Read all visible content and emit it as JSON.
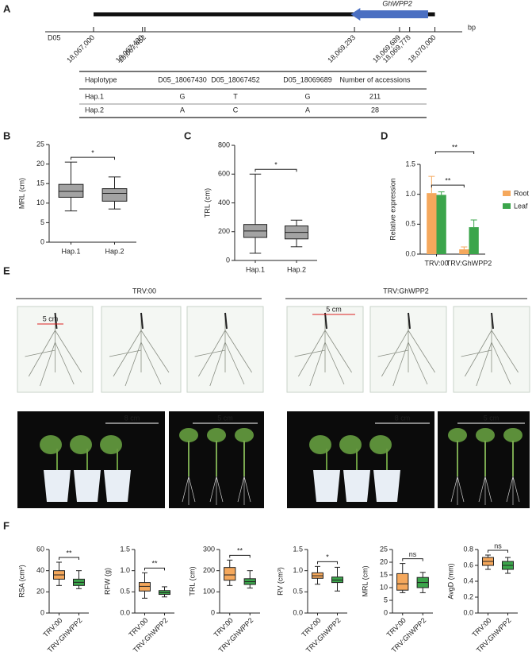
{
  "panel_labels": [
    "A",
    "B",
    "C",
    "D",
    "E",
    "F"
  ],
  "gene_map": {
    "chromosome": "D05",
    "unit": "bp",
    "gene": "GhWPP2",
    "xlim": [
      18066575,
      18070240
    ],
    "region": [
      18067000,
      18070000
    ],
    "gene_span": [
      18069260,
      18069940
    ],
    "ticks": [
      {
        "value": 18067000,
        "label": "18,067,000"
      },
      {
        "value": 18067430,
        "label": "18,067,430"
      },
      {
        "value": 18067452,
        "label": "18,067,452"
      },
      {
        "value": 18069293,
        "label": "18,069,293"
      },
      {
        "value": 18069689,
        "label": "18,069,689"
      },
      {
        "value": 18069778,
        "label": "18,069,778"
      },
      {
        "value": 18070000,
        "label": "18,070,000"
      }
    ]
  },
  "haplotype_table": {
    "header": [
      "Haplotype",
      "D05_18067430",
      "D05_18067452",
      "D05_18069689",
      "Number of accessions"
    ],
    "rows": [
      [
        "Hap.1",
        "G",
        "T",
        "G",
        211
      ],
      [
        "Hap.2",
        "A",
        "C",
        "A",
        28
      ]
    ]
  },
  "chart_data": [
    {
      "type": "box",
      "y_label": "MRL (cm)",
      "categories": [
        "Hap.1",
        "Hap.2"
      ],
      "colors": [
        "#a3a3a3",
        "#a3a3a3"
      ],
      "ylim": [
        0,
        25
      ],
      "yticks": [
        0,
        5,
        10,
        15,
        20,
        25
      ],
      "significance": "*",
      "boxes": [
        {
          "min": 8,
          "q1": 11.5,
          "median": 13,
          "q3": 14.8,
          "max": 20.5
        },
        {
          "min": 8.5,
          "q1": 10.5,
          "median": 12.5,
          "q3": 13.7,
          "max": 16.7
        }
      ]
    },
    {
      "type": "box",
      "y_label": "TRL (cm)",
      "categories": [
        "Hap.1",
        "Hap.2"
      ],
      "colors": [
        "#a3a3a3",
        "#a3a3a3"
      ],
      "ylim": [
        0,
        800
      ],
      "yticks": [
        0,
        200,
        400,
        600,
        800
      ],
      "significance": "*",
      "boxes": [
        {
          "min": 50,
          "q1": 160,
          "median": 205,
          "q3": 250,
          "max": 600
        },
        {
          "min": 95,
          "q1": 150,
          "median": 195,
          "q3": 240,
          "max": 280
        }
      ]
    },
    {
      "type": "bar",
      "y_label": "Relative expression",
      "categories": [
        "TRV:00",
        "TRV:GhWPP2"
      ],
      "ylim": [
        0,
        1.5
      ],
      "yticks": [
        {
          "value": 0,
          "label": "0.0"
        },
        0.5,
        {
          "value": 1,
          "label": "1.0"
        },
        1.5
      ],
      "significance": [
        "**",
        "**"
      ],
      "series": [
        {
          "name": "Root",
          "color": "#f5a85c",
          "values": [
            1.02,
            0.08
          ],
          "errors": [
            0.28,
            0.04
          ]
        },
        {
          "name": "Leaf",
          "color": "#3ba54b",
          "values": [
            0.99,
            0.45
          ],
          "errors": [
            0.05,
            0.12
          ]
        }
      ]
    },
    {
      "type": "box",
      "y_label": "RSA (cm²)",
      "categories": [
        "TRV:00",
        "TRV:GhWPP2"
      ],
      "colors": [
        "#f5a85c",
        "#3ba54b"
      ],
      "ylim": [
        0,
        60
      ],
      "yticks": [
        0,
        20,
        40,
        60
      ],
      "significance": "**",
      "boxes": [
        {
          "min": 26,
          "q1": 32,
          "median": 36,
          "q3": 40,
          "max": 48
        },
        {
          "min": 23,
          "q1": 26,
          "median": 29,
          "q3": 32,
          "max": 40
        }
      ]
    },
    {
      "type": "box",
      "y_label": "RFW (g)",
      "categories": [
        "TRV:00",
        "TRV:GhWPP2"
      ],
      "colors": [
        "#f5a85c",
        "#3ba54b"
      ],
      "ylim": [
        0,
        1.5
      ],
      "yticks": [
        {
          "value": 0,
          "label": "0.0"
        },
        0.5,
        {
          "value": 1,
          "label": "1.0"
        },
        1.5
      ],
      "significance": "**",
      "boxes": [
        {
          "min": 0.35,
          "q1": 0.52,
          "median": 0.63,
          "q3": 0.72,
          "max": 0.95
        },
        {
          "min": 0.38,
          "q1": 0.44,
          "median": 0.48,
          "q3": 0.53,
          "max": 0.62
        }
      ]
    },
    {
      "type": "box",
      "y_label": "TRL (cm)",
      "categories": [
        "TRV:00",
        "TRV:GhWPP2"
      ],
      "colors": [
        "#f5a85c",
        "#3ba54b"
      ],
      "ylim": [
        0,
        300
      ],
      "yticks": [
        0,
        100,
        200,
        300
      ],
      "significance": "**",
      "boxes": [
        {
          "min": 130,
          "q1": 155,
          "median": 180,
          "q3": 215,
          "max": 250
        },
        {
          "min": 118,
          "q1": 135,
          "median": 148,
          "q3": 162,
          "max": 200
        }
      ]
    },
    {
      "type": "box",
      "y_label": "RV (cm³)",
      "categories": [
        "TRV:00",
        "TRV:GhWPP2"
      ],
      "colors": [
        "#f5a85c",
        "#3ba54b"
      ],
      "ylim": [
        0,
        1.5
      ],
      "yticks": [
        {
          "value": 0,
          "label": "0.0"
        },
        0.5,
        {
          "value": 1,
          "label": "1.0"
        },
        1.5
      ],
      "significance": "*",
      "boxes": [
        {
          "min": 0.68,
          "q1": 0.82,
          "median": 0.88,
          "q3": 0.95,
          "max": 1.1
        },
        {
          "min": 0.52,
          "q1": 0.72,
          "median": 0.78,
          "q3": 0.85,
          "max": 1.08
        }
      ]
    },
    {
      "type": "box",
      "y_label": "MRL (cm)",
      "categories": [
        "TRV:00",
        "TRV:GhWPP2"
      ],
      "colors": [
        "#f5a85c",
        "#3ba54b"
      ],
      "ylim": [
        0,
        25
      ],
      "yticks": [
        0,
        5,
        10,
        15,
        20,
        25
      ],
      "significance": "ns",
      "boxes": [
        {
          "min": 8,
          "q1": 9,
          "median": 11.5,
          "q3": 15.5,
          "max": 19.5
        },
        {
          "min": 8,
          "q1": 10,
          "median": 12,
          "q3": 14,
          "max": 16
        }
      ]
    },
    {
      "type": "box",
      "y_label": "AvgD (mm)",
      "categories": [
        "TRV:00",
        "TRV:GhWPP2"
      ],
      "colors": [
        "#f5a85c",
        "#3ba54b"
      ],
      "ylim": [
        0,
        0.8
      ],
      "yticks": [
        {
          "value": 0,
          "label": "0.0"
        },
        0.2,
        0.4,
        0.6,
        0.8
      ],
      "significance": "ns",
      "boxes": [
        {
          "min": 0.55,
          "q1": 0.6,
          "median": 0.65,
          "q3": 0.7,
          "max": 0.73
        },
        {
          "min": 0.5,
          "q1": 0.55,
          "median": 0.6,
          "q3": 0.65,
          "max": 0.7
        }
      ]
    }
  ],
  "photos": {
    "groups": [
      "TRV:00",
      "TRV:GhWPP2"
    ],
    "scale_bars": [
      "5 cm",
      "8 cm",
      "5 cm",
      "5 cm",
      "8 cm",
      "5 cm"
    ]
  }
}
